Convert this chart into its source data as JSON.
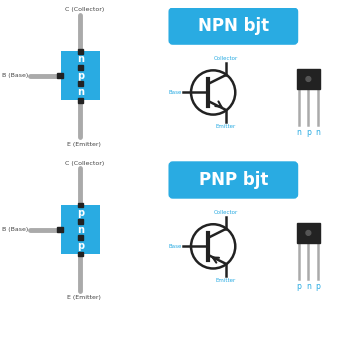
{
  "bg_color": "#ffffff",
  "blue_color": "#29abe2",
  "dark_color": "#222222",
  "gray_color": "#aaaaaa",
  "text_white": "#ffffff",
  "text_blue": "#29abe2",
  "text_dark": "#444444",
  "npn_label": "NPN bjt",
  "pnp_label": "PNP bjt",
  "npn_layers": [
    "n",
    "p",
    "n"
  ],
  "pnp_layers": [
    "p",
    "n",
    "p"
  ],
  "npn_pkg_labels": [
    "n",
    "p",
    "n"
  ],
  "pnp_pkg_labels": [
    "p",
    "n",
    "p"
  ],
  "c_label": "C (Collector)",
  "b_label": "B (Base)",
  "e_label": "E (Emitter)",
  "collector_label": "Collector",
  "base_label": "Base",
  "emitter_label": "Emitter"
}
